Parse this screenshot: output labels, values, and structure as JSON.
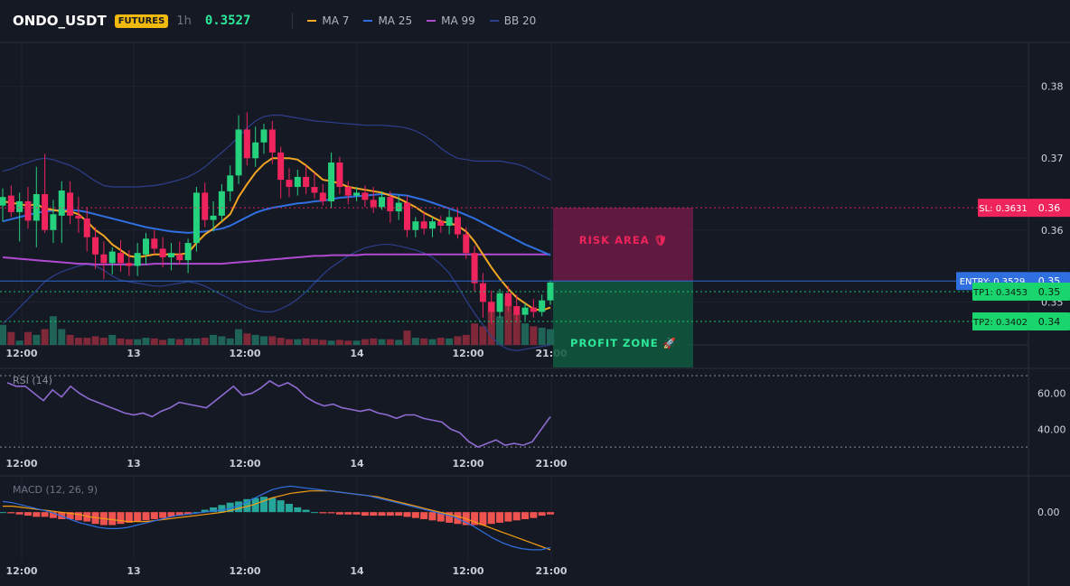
{
  "header": {
    "symbol": "ONDO_USDT",
    "market_badge": "FUTURES",
    "timeframe": "1h",
    "last_price": "0.3527",
    "indicators": [
      {
        "label": "MA 7",
        "color": "#f5a623"
      },
      {
        "label": "MA 25",
        "color": "#2f6fe0"
      },
      {
        "label": "MA 99",
        "color": "#b04ad1"
      },
      {
        "label": "BB 20",
        "color": "#2d3f8c"
      }
    ]
  },
  "colors": {
    "up": "#26d17e",
    "down": "#f0245c",
    "background": "#151924",
    "risk": "#6e1b44",
    "profit": "#0f5a3e"
  },
  "x_axis_labels": [
    "12:00",
    "13",
    "12:00",
    "14",
    "12:00",
    "21:00"
  ],
  "chart_data": [
    {
      "type": "candlestick",
      "y_ticks": [
        "0.38",
        "0.37",
        "0.36",
        "0.35"
      ],
      "y_tick_values": [
        0.38,
        0.37,
        0.36,
        0.35
      ],
      "ylim": [
        0.344,
        0.386
      ],
      "candles": [
        {
          "o": 0.3634,
          "h": 0.3658,
          "l": 0.3612,
          "c": 0.3646
        },
        {
          "o": 0.3648,
          "h": 0.3662,
          "l": 0.3618,
          "c": 0.3625
        },
        {
          "o": 0.3625,
          "h": 0.3652,
          "l": 0.3584,
          "c": 0.364
        },
        {
          "o": 0.364,
          "h": 0.366,
          "l": 0.3602,
          "c": 0.3613
        },
        {
          "o": 0.3613,
          "h": 0.3688,
          "l": 0.3576,
          "c": 0.365
        },
        {
          "o": 0.365,
          "h": 0.3706,
          "l": 0.3596,
          "c": 0.36
        },
        {
          "o": 0.36,
          "h": 0.3642,
          "l": 0.3582,
          "c": 0.3622
        },
        {
          "o": 0.362,
          "h": 0.3668,
          "l": 0.3582,
          "c": 0.3655
        },
        {
          "o": 0.3652,
          "h": 0.3668,
          "l": 0.3608,
          "c": 0.362
        },
        {
          "o": 0.362,
          "h": 0.3646,
          "l": 0.3596,
          "c": 0.3616
        },
        {
          "o": 0.3616,
          "h": 0.3632,
          "l": 0.357,
          "c": 0.359
        },
        {
          "o": 0.359,
          "h": 0.3604,
          "l": 0.3546,
          "c": 0.3566
        },
        {
          "o": 0.3566,
          "h": 0.3584,
          "l": 0.3532,
          "c": 0.3554
        },
        {
          "o": 0.3554,
          "h": 0.3576,
          "l": 0.3538,
          "c": 0.357
        },
        {
          "o": 0.3568,
          "h": 0.3586,
          "l": 0.3542,
          "c": 0.3554
        },
        {
          "o": 0.3554,
          "h": 0.3572,
          "l": 0.3536,
          "c": 0.355
        },
        {
          "o": 0.355,
          "h": 0.3582,
          "l": 0.3536,
          "c": 0.3568
        },
        {
          "o": 0.3566,
          "h": 0.3596,
          "l": 0.3552,
          "c": 0.3588
        },
        {
          "o": 0.3588,
          "h": 0.36,
          "l": 0.3566,
          "c": 0.3574
        },
        {
          "o": 0.3574,
          "h": 0.359,
          "l": 0.3548,
          "c": 0.3562
        },
        {
          "o": 0.3562,
          "h": 0.3582,
          "l": 0.3544,
          "c": 0.3568
        },
        {
          "o": 0.3566,
          "h": 0.3584,
          "l": 0.3552,
          "c": 0.3558
        },
        {
          "o": 0.3558,
          "h": 0.3588,
          "l": 0.354,
          "c": 0.3582
        },
        {
          "o": 0.3582,
          "h": 0.366,
          "l": 0.357,
          "c": 0.3652
        },
        {
          "o": 0.3652,
          "h": 0.3666,
          "l": 0.3604,
          "c": 0.3614
        },
        {
          "o": 0.3614,
          "h": 0.364,
          "l": 0.3598,
          "c": 0.362
        },
        {
          "o": 0.362,
          "h": 0.3664,
          "l": 0.3612,
          "c": 0.3654
        },
        {
          "o": 0.3654,
          "h": 0.369,
          "l": 0.364,
          "c": 0.3676
        },
        {
          "o": 0.3676,
          "h": 0.376,
          "l": 0.3664,
          "c": 0.374
        },
        {
          "o": 0.374,
          "h": 0.3764,
          "l": 0.369,
          "c": 0.37
        },
        {
          "o": 0.37,
          "h": 0.3744,
          "l": 0.3688,
          "c": 0.3722
        },
        {
          "o": 0.3722,
          "h": 0.3748,
          "l": 0.3706,
          "c": 0.374
        },
        {
          "o": 0.374,
          "h": 0.3752,
          "l": 0.3692,
          "c": 0.3708
        },
        {
          "o": 0.3708,
          "h": 0.3716,
          "l": 0.3644,
          "c": 0.367
        },
        {
          "o": 0.367,
          "h": 0.3686,
          "l": 0.3646,
          "c": 0.366
        },
        {
          "o": 0.366,
          "h": 0.3684,
          "l": 0.3648,
          "c": 0.3674
        },
        {
          "o": 0.3674,
          "h": 0.369,
          "l": 0.365,
          "c": 0.366
        },
        {
          "o": 0.366,
          "h": 0.368,
          "l": 0.3644,
          "c": 0.3652
        },
        {
          "o": 0.3652,
          "h": 0.3664,
          "l": 0.3634,
          "c": 0.364
        },
        {
          "o": 0.364,
          "h": 0.3708,
          "l": 0.363,
          "c": 0.3694
        },
        {
          "o": 0.3694,
          "h": 0.3702,
          "l": 0.365,
          "c": 0.366
        },
        {
          "o": 0.366,
          "h": 0.3668,
          "l": 0.3636,
          "c": 0.3648
        },
        {
          "o": 0.3648,
          "h": 0.366,
          "l": 0.364,
          "c": 0.3652
        },
        {
          "o": 0.3652,
          "h": 0.3662,
          "l": 0.3632,
          "c": 0.3642
        },
        {
          "o": 0.3642,
          "h": 0.366,
          "l": 0.3624,
          "c": 0.3632
        },
        {
          "o": 0.3632,
          "h": 0.3654,
          "l": 0.3628,
          "c": 0.3646
        },
        {
          "o": 0.3646,
          "h": 0.3654,
          "l": 0.361,
          "c": 0.3626
        },
        {
          "o": 0.3626,
          "h": 0.3648,
          "l": 0.3614,
          "c": 0.3638
        },
        {
          "o": 0.3638,
          "h": 0.3648,
          "l": 0.359,
          "c": 0.36
        },
        {
          "o": 0.36,
          "h": 0.3618,
          "l": 0.359,
          "c": 0.3612
        },
        {
          "o": 0.3612,
          "h": 0.3626,
          "l": 0.3594,
          "c": 0.3602
        },
        {
          "o": 0.3602,
          "h": 0.3618,
          "l": 0.359,
          "c": 0.3612
        },
        {
          "o": 0.3612,
          "h": 0.362,
          "l": 0.3596,
          "c": 0.3606
        },
        {
          "o": 0.3606,
          "h": 0.3628,
          "l": 0.3594,
          "c": 0.3618
        },
        {
          "o": 0.3618,
          "h": 0.363,
          "l": 0.3588,
          "c": 0.3594
        },
        {
          "o": 0.3594,
          "h": 0.3604,
          "l": 0.356,
          "c": 0.3568
        },
        {
          "o": 0.3568,
          "h": 0.3578,
          "l": 0.3514,
          "c": 0.3526
        },
        {
          "o": 0.3526,
          "h": 0.354,
          "l": 0.3478,
          "c": 0.35
        },
        {
          "o": 0.35,
          "h": 0.3516,
          "l": 0.347,
          "c": 0.3486
        },
        {
          "o": 0.3486,
          "h": 0.3518,
          "l": 0.3478,
          "c": 0.3512
        },
        {
          "o": 0.3512,
          "h": 0.3522,
          "l": 0.3486,
          "c": 0.3494
        },
        {
          "o": 0.3494,
          "h": 0.351,
          "l": 0.3472,
          "c": 0.3482
        },
        {
          "o": 0.3482,
          "h": 0.3498,
          "l": 0.3474,
          "c": 0.3492
        },
        {
          "o": 0.3492,
          "h": 0.3504,
          "l": 0.3478,
          "c": 0.3486
        },
        {
          "o": 0.3486,
          "h": 0.351,
          "l": 0.348,
          "c": 0.3502
        },
        {
          "o": 0.3502,
          "h": 0.353,
          "l": 0.3496,
          "c": 0.3527
        }
      ],
      "ma7": [
        0.364,
        0.3638,
        0.3636,
        0.3634,
        0.3636,
        0.363,
        0.3628,
        0.3626,
        0.3626,
        0.3622,
        0.3612,
        0.36,
        0.3592,
        0.358,
        0.3572,
        0.3564,
        0.3562,
        0.3564,
        0.3566,
        0.3566,
        0.3566,
        0.3566,
        0.3568,
        0.3582,
        0.3594,
        0.3602,
        0.3612,
        0.3622,
        0.3646,
        0.3664,
        0.368,
        0.3692,
        0.37,
        0.37,
        0.37,
        0.3698,
        0.369,
        0.368,
        0.367,
        0.3668,
        0.3665,
        0.366,
        0.3658,
        0.3656,
        0.3654,
        0.3652,
        0.3648,
        0.3644,
        0.3638,
        0.3632,
        0.3624,
        0.3618,
        0.3612,
        0.361,
        0.3606,
        0.3598,
        0.3584,
        0.3566,
        0.3548,
        0.3532,
        0.3518,
        0.3506,
        0.3498,
        0.349,
        0.3488,
        0.3492
      ],
      "ma25": [
        0.3612,
        0.3615,
        0.3618,
        0.3621,
        0.3624,
        0.3626,
        0.3627,
        0.3628,
        0.3628,
        0.3627,
        0.3625,
        0.3622,
        0.3619,
        0.3616,
        0.3613,
        0.361,
        0.3607,
        0.3604,
        0.3602,
        0.36,
        0.3598,
        0.3597,
        0.3596,
        0.3597,
        0.3598,
        0.36,
        0.3602,
        0.3606,
        0.3612,
        0.3618,
        0.3624,
        0.3628,
        0.3631,
        0.3633,
        0.3635,
        0.3637,
        0.3638,
        0.364,
        0.3641,
        0.3643,
        0.3645,
        0.3646,
        0.3647,
        0.3648,
        0.3649,
        0.365,
        0.365,
        0.3649,
        0.3648,
        0.3645,
        0.3642,
        0.3638,
        0.3634,
        0.363,
        0.3626,
        0.3621,
        0.3616,
        0.361,
        0.3604,
        0.3598,
        0.3592,
        0.3586,
        0.358,
        0.3575,
        0.357,
        0.3565
      ],
      "ma99": [
        0.3562,
        0.3561,
        0.356,
        0.3559,
        0.3558,
        0.3557,
        0.3556,
        0.3555,
        0.3554,
        0.3553,
        0.3553,
        0.3552,
        0.3552,
        0.3552,
        0.3552,
        0.3552,
        0.3552,
        0.3552,
        0.3553,
        0.3553,
        0.3553,
        0.3553,
        0.3553,
        0.3553,
        0.3553,
        0.3553,
        0.3553,
        0.3554,
        0.3555,
        0.3556,
        0.3557,
        0.3558,
        0.3559,
        0.356,
        0.3561,
        0.3562,
        0.3563,
        0.3564,
        0.3564,
        0.3565,
        0.3565,
        0.3565,
        0.3565,
        0.3566,
        0.3566,
        0.3566,
        0.3566,
        0.3566,
        0.3566,
        0.3566,
        0.3566,
        0.3566,
        0.3566,
        0.3566,
        0.3566,
        0.3566,
        0.3566,
        0.3566,
        0.3566,
        0.3566,
        0.3566,
        0.3566,
        0.3566,
        0.3566,
        0.3566,
        0.3566
      ],
      "bb_upper": [
        0.3682,
        0.3685,
        0.369,
        0.3694,
        0.3698,
        0.37,
        0.3698,
        0.3694,
        0.369,
        0.3684,
        0.3676,
        0.3668,
        0.3662,
        0.366,
        0.366,
        0.366,
        0.366,
        0.3661,
        0.3662,
        0.3664,
        0.3667,
        0.367,
        0.3674,
        0.368,
        0.3688,
        0.3698,
        0.3708,
        0.3718,
        0.373,
        0.3742,
        0.3752,
        0.3758,
        0.376,
        0.376,
        0.3758,
        0.3756,
        0.3754,
        0.3752,
        0.3751,
        0.375,
        0.3749,
        0.3748,
        0.3747,
        0.3746,
        0.3746,
        0.3746,
        0.3745,
        0.3744,
        0.3742,
        0.3738,
        0.3732,
        0.3724,
        0.3714,
        0.3706,
        0.37,
        0.3698,
        0.3696,
        0.3696,
        0.3696,
        0.3696,
        0.3694,
        0.3692,
        0.3688,
        0.3682,
        0.3676,
        0.367
      ],
      "bb_lower": [
        0.347,
        0.348,
        0.3492,
        0.3504,
        0.3516,
        0.3528,
        0.3536,
        0.3542,
        0.3546,
        0.355,
        0.3552,
        0.355,
        0.3544,
        0.3536,
        0.353,
        0.3528,
        0.3526,
        0.3524,
        0.3522,
        0.3522,
        0.3524,
        0.3526,
        0.3528,
        0.3526,
        0.3522,
        0.3516,
        0.351,
        0.3504,
        0.3498,
        0.3492,
        0.3488,
        0.3486,
        0.3486,
        0.349,
        0.3496,
        0.3504,
        0.3514,
        0.3526,
        0.3538,
        0.3548,
        0.3556,
        0.3564,
        0.357,
        0.3575,
        0.3578,
        0.358,
        0.358,
        0.3578,
        0.3575,
        0.3572,
        0.3568,
        0.3562,
        0.3552,
        0.354,
        0.3522,
        0.3502,
        0.3484,
        0.3468,
        0.3452,
        0.344,
        0.3434,
        0.3432,
        0.3434,
        0.3436,
        0.3438,
        0.344
      ],
      "volume": [
        28,
        18,
        6,
        18,
        14,
        22,
        40,
        22,
        14,
        10,
        10,
        12,
        10,
        14,
        9,
        8,
        8,
        10,
        9,
        7,
        9,
        8,
        9,
        9,
        10,
        14,
        12,
        9,
        22,
        16,
        14,
        12,
        12,
        10,
        8,
        8,
        9,
        8,
        7,
        6,
        7,
        6,
        6,
        8,
        9,
        8,
        8,
        7,
        20,
        10,
        9,
        8,
        10,
        9,
        12,
        14,
        30,
        26,
        60,
        40,
        68,
        44,
        30,
        26,
        24,
        22
      ],
      "levels": [
        {
          "label": "SL: 0.3631",
          "value": 0.3631,
          "axis_label": "0.36",
          "color": "#f0245c"
        },
        {
          "label": "ENTRY: 0.3529",
          "value": 0.3529,
          "axis_label": "0.35",
          "color": "#2f6fe0"
        },
        {
          "label": "TP1: 0.3453",
          "value": 0.3453,
          "axis_label": "0.35",
          "color": "#1ad46e"
        },
        {
          "label": "TP2: 0.3402",
          "value": 0.3402,
          "axis_label": "0.34",
          "color": "#1ad46e"
        }
      ],
      "zones": {
        "risk_label": "RISK AREA",
        "profit_label": "PROFIT ZONE"
      }
    },
    {
      "type": "line",
      "title": "RSI (14)",
      "y_ticks": [
        "60.00",
        "40.00"
      ],
      "y_tick_values": [
        60,
        40
      ],
      "ylim": [
        26,
        72
      ],
      "bands": [
        70,
        30
      ],
      "values": [
        66,
        64,
        64,
        60,
        56,
        62,
        58,
        64,
        60,
        57,
        55,
        53,
        51,
        49,
        48,
        49,
        47,
        50,
        52,
        55,
        54,
        53,
        52,
        56,
        60,
        64,
        59,
        60,
        63,
        67,
        64,
        66,
        63,
        58,
        55,
        53,
        54,
        52,
        51,
        50,
        51,
        49,
        48,
        46,
        48,
        48,
        46,
        45,
        44,
        40,
        38,
        33,
        30,
        32,
        34,
        31,
        32,
        31,
        33,
        40,
        47
      ]
    },
    {
      "type": "bar+line",
      "title": "MACD (12, 26, 9)",
      "y_ticks": [
        "0.00"
      ],
      "y_tick_values": [
        0
      ],
      "ylim": [
        -0.0042,
        0.003
      ],
      "histogram": [
        0.0,
        -0.0001,
        -0.0002,
        -0.0003,
        -0.0004,
        -0.0004,
        -0.0005,
        -0.0006,
        -0.0006,
        -0.0007,
        -0.0008,
        -0.001,
        -0.0011,
        -0.0011,
        -0.001,
        -0.0009,
        -0.0008,
        -0.0007,
        -0.0006,
        -0.0005,
        -0.0004,
        -0.0003,
        -0.0002,
        0.0,
        0.0002,
        0.0004,
        0.0006,
        0.0008,
        0.0009,
        0.0011,
        0.0012,
        0.0013,
        0.0012,
        0.001,
        0.0007,
        0.0004,
        0.0002,
        0.0,
        -0.0001,
        -0.0001,
        -0.0002,
        -0.0002,
        -0.0002,
        -0.0003,
        -0.0003,
        -0.0003,
        -0.0003,
        -0.0003,
        -0.0004,
        -0.0005,
        -0.0006,
        -0.0007,
        -0.0008,
        -0.0009,
        -0.001,
        -0.0011,
        -0.0011,
        -0.0011,
        -0.001,
        -0.0009,
        -0.0008,
        -0.0007,
        -0.0006,
        -0.0005,
        -0.0003,
        -0.0002
      ],
      "macd": [
        0.0009,
        0.0008,
        0.0006,
        0.0004,
        0.0002,
        0.0,
        -0.0003,
        -0.0006,
        -0.0009,
        -0.0011,
        -0.0013,
        -0.0014,
        -0.0014,
        -0.0013,
        -0.0011,
        -0.0009,
        -0.0007,
        -0.0005,
        -0.0003,
        -0.0002,
        -0.0001,
        0.0,
        0.0001,
        0.0002,
        0.0004,
        0.0007,
        0.0011,
        0.0015,
        0.0019,
        0.0021,
        0.0022,
        0.0021,
        0.002,
        0.0019,
        0.0018,
        0.0017,
        0.0016,
        0.0015,
        0.0014,
        0.0012,
        0.001,
        0.0008,
        0.0006,
        0.0004,
        0.0002,
        0.0,
        -0.0002,
        -0.0004,
        -0.0008,
        -0.0012,
        -0.0017,
        -0.0022,
        -0.0026,
        -0.0029,
        -0.0031,
        -0.0032,
        -0.0032,
        -0.003
      ],
      "signal": [
        0.0005,
        0.0005,
        0.0004,
        0.0003,
        0.0002,
        0.0001,
        0.0,
        -0.0001,
        -0.0002,
        -0.0004,
        -0.0005,
        -0.0006,
        -0.0007,
        -0.0008,
        -0.0008,
        -0.0008,
        -0.0007,
        -0.0006,
        -0.0005,
        -0.0004,
        -0.0003,
        -0.0002,
        -0.0001,
        0.0,
        0.0002,
        0.0004,
        0.0006,
        0.0009,
        0.0012,
        0.0014,
        0.0016,
        0.0017,
        0.0018,
        0.0018,
        0.0018,
        0.0017,
        0.0016,
        0.0015,
        0.0014,
        0.0013,
        0.0011,
        0.0009,
        0.0007,
        0.0005,
        0.0003,
        0.0001,
        -0.0001,
        -0.0003,
        -0.0005,
        -0.0008,
        -0.0011,
        -0.0014,
        -0.0017,
        -0.002,
        -0.0023,
        -0.0026,
        -0.0029,
        -0.0032
      ]
    }
  ]
}
